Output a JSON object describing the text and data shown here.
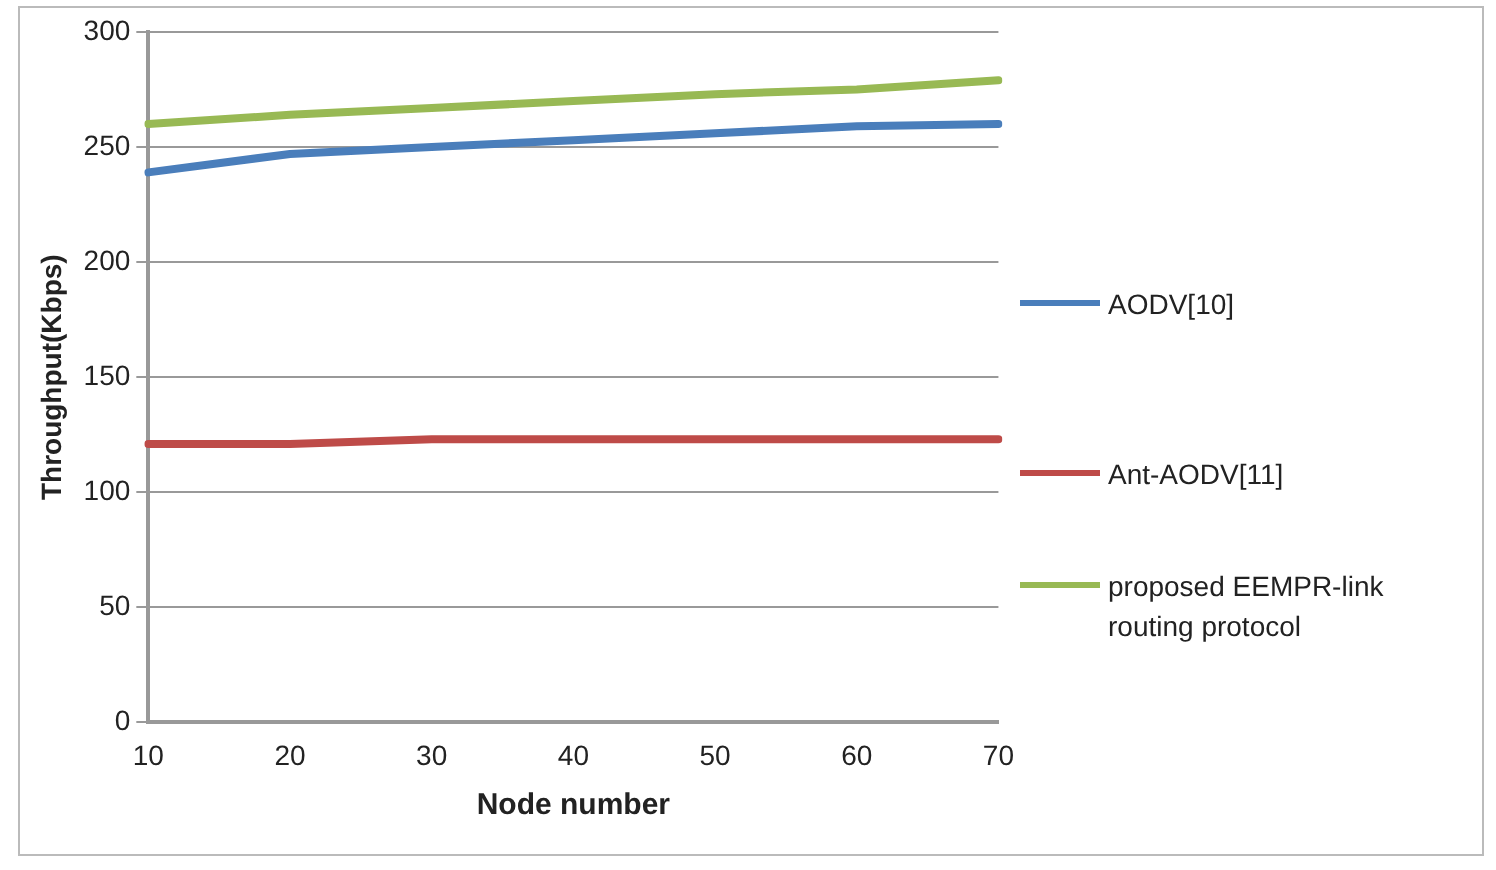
{
  "chart_data": {
    "type": "line",
    "xlabel": "Node number",
    "ylabel": "Throughput(Kbps)",
    "categories": [
      "10",
      "20",
      "30",
      "40",
      "50",
      "60",
      "70"
    ],
    "series": [
      {
        "name": "AODV[10]",
        "color": "#4a7ebb",
        "values": [
          239,
          247,
          250,
          253,
          256,
          259,
          260
        ]
      },
      {
        "name": "Ant-AODV[11]",
        "color": "#be4b48",
        "values": [
          121,
          121,
          123,
          123,
          123,
          123,
          123
        ]
      },
      {
        "name": "proposed EEMPR-link routing protocol",
        "color": "#98b954",
        "values": [
          260,
          264,
          267,
          270,
          273,
          275,
          279
        ]
      }
    ],
    "ylim": [
      0,
      300
    ],
    "yticks": [
      0,
      50,
      100,
      150,
      200,
      250,
      300
    ],
    "grid": "y",
    "legend": "right",
    "marker": "none",
    "line_style": "solid"
  }
}
